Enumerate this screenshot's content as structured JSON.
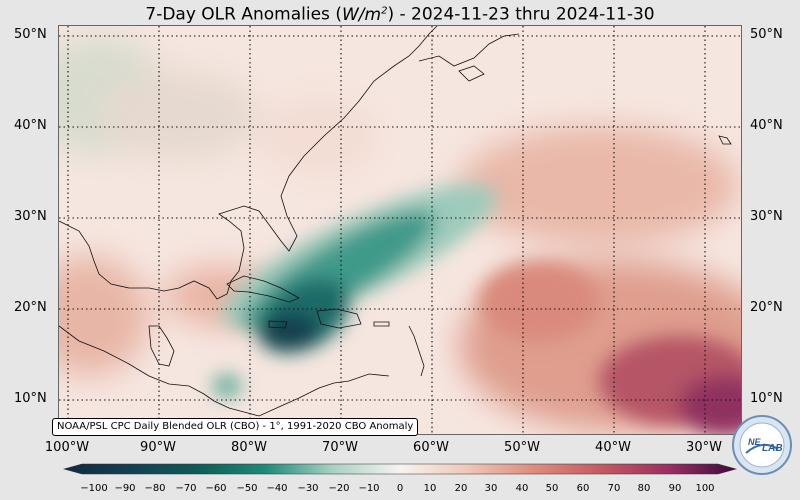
{
  "title_parts": {
    "prefix": "7-Day OLR Anomalies (",
    "unit_base": "W/m",
    "unit_exp": "2",
    "suffix": ") - 2024-11-23 thru 2024-11-30"
  },
  "latitude_labels": [
    "50°N",
    "40°N",
    "30°N",
    "20°N",
    "10°N"
  ],
  "longitude_labels": [
    "100°W",
    "90°W",
    "80°W",
    "70°W",
    "60°W",
    "50°W",
    "40°W",
    "30°W"
  ],
  "credit": "NOAA/PSL CPC Daily Blended OLR (CBO) - 1°, 1991-2020 CBO Anomaly",
  "colorbar": {
    "ticks": [
      "−100",
      "−90",
      "−80",
      "−70",
      "−60",
      "−50",
      "−40",
      "−30",
      "−20",
      "−10",
      "0",
      "10",
      "20",
      "30",
      "40",
      "50",
      "60",
      "70",
      "80",
      "90",
      "100"
    ],
    "negative_color": "#0f5c57",
    "positive_color": "#7a1f5c"
  },
  "logo_text": "NESDIS ... LAB",
  "colors": {
    "background": "#e6e6e6",
    "ocean_base": "#f7e7e2",
    "negative_anomaly": "#1a7a6e",
    "positive_anomaly": "#c0675c"
  }
}
